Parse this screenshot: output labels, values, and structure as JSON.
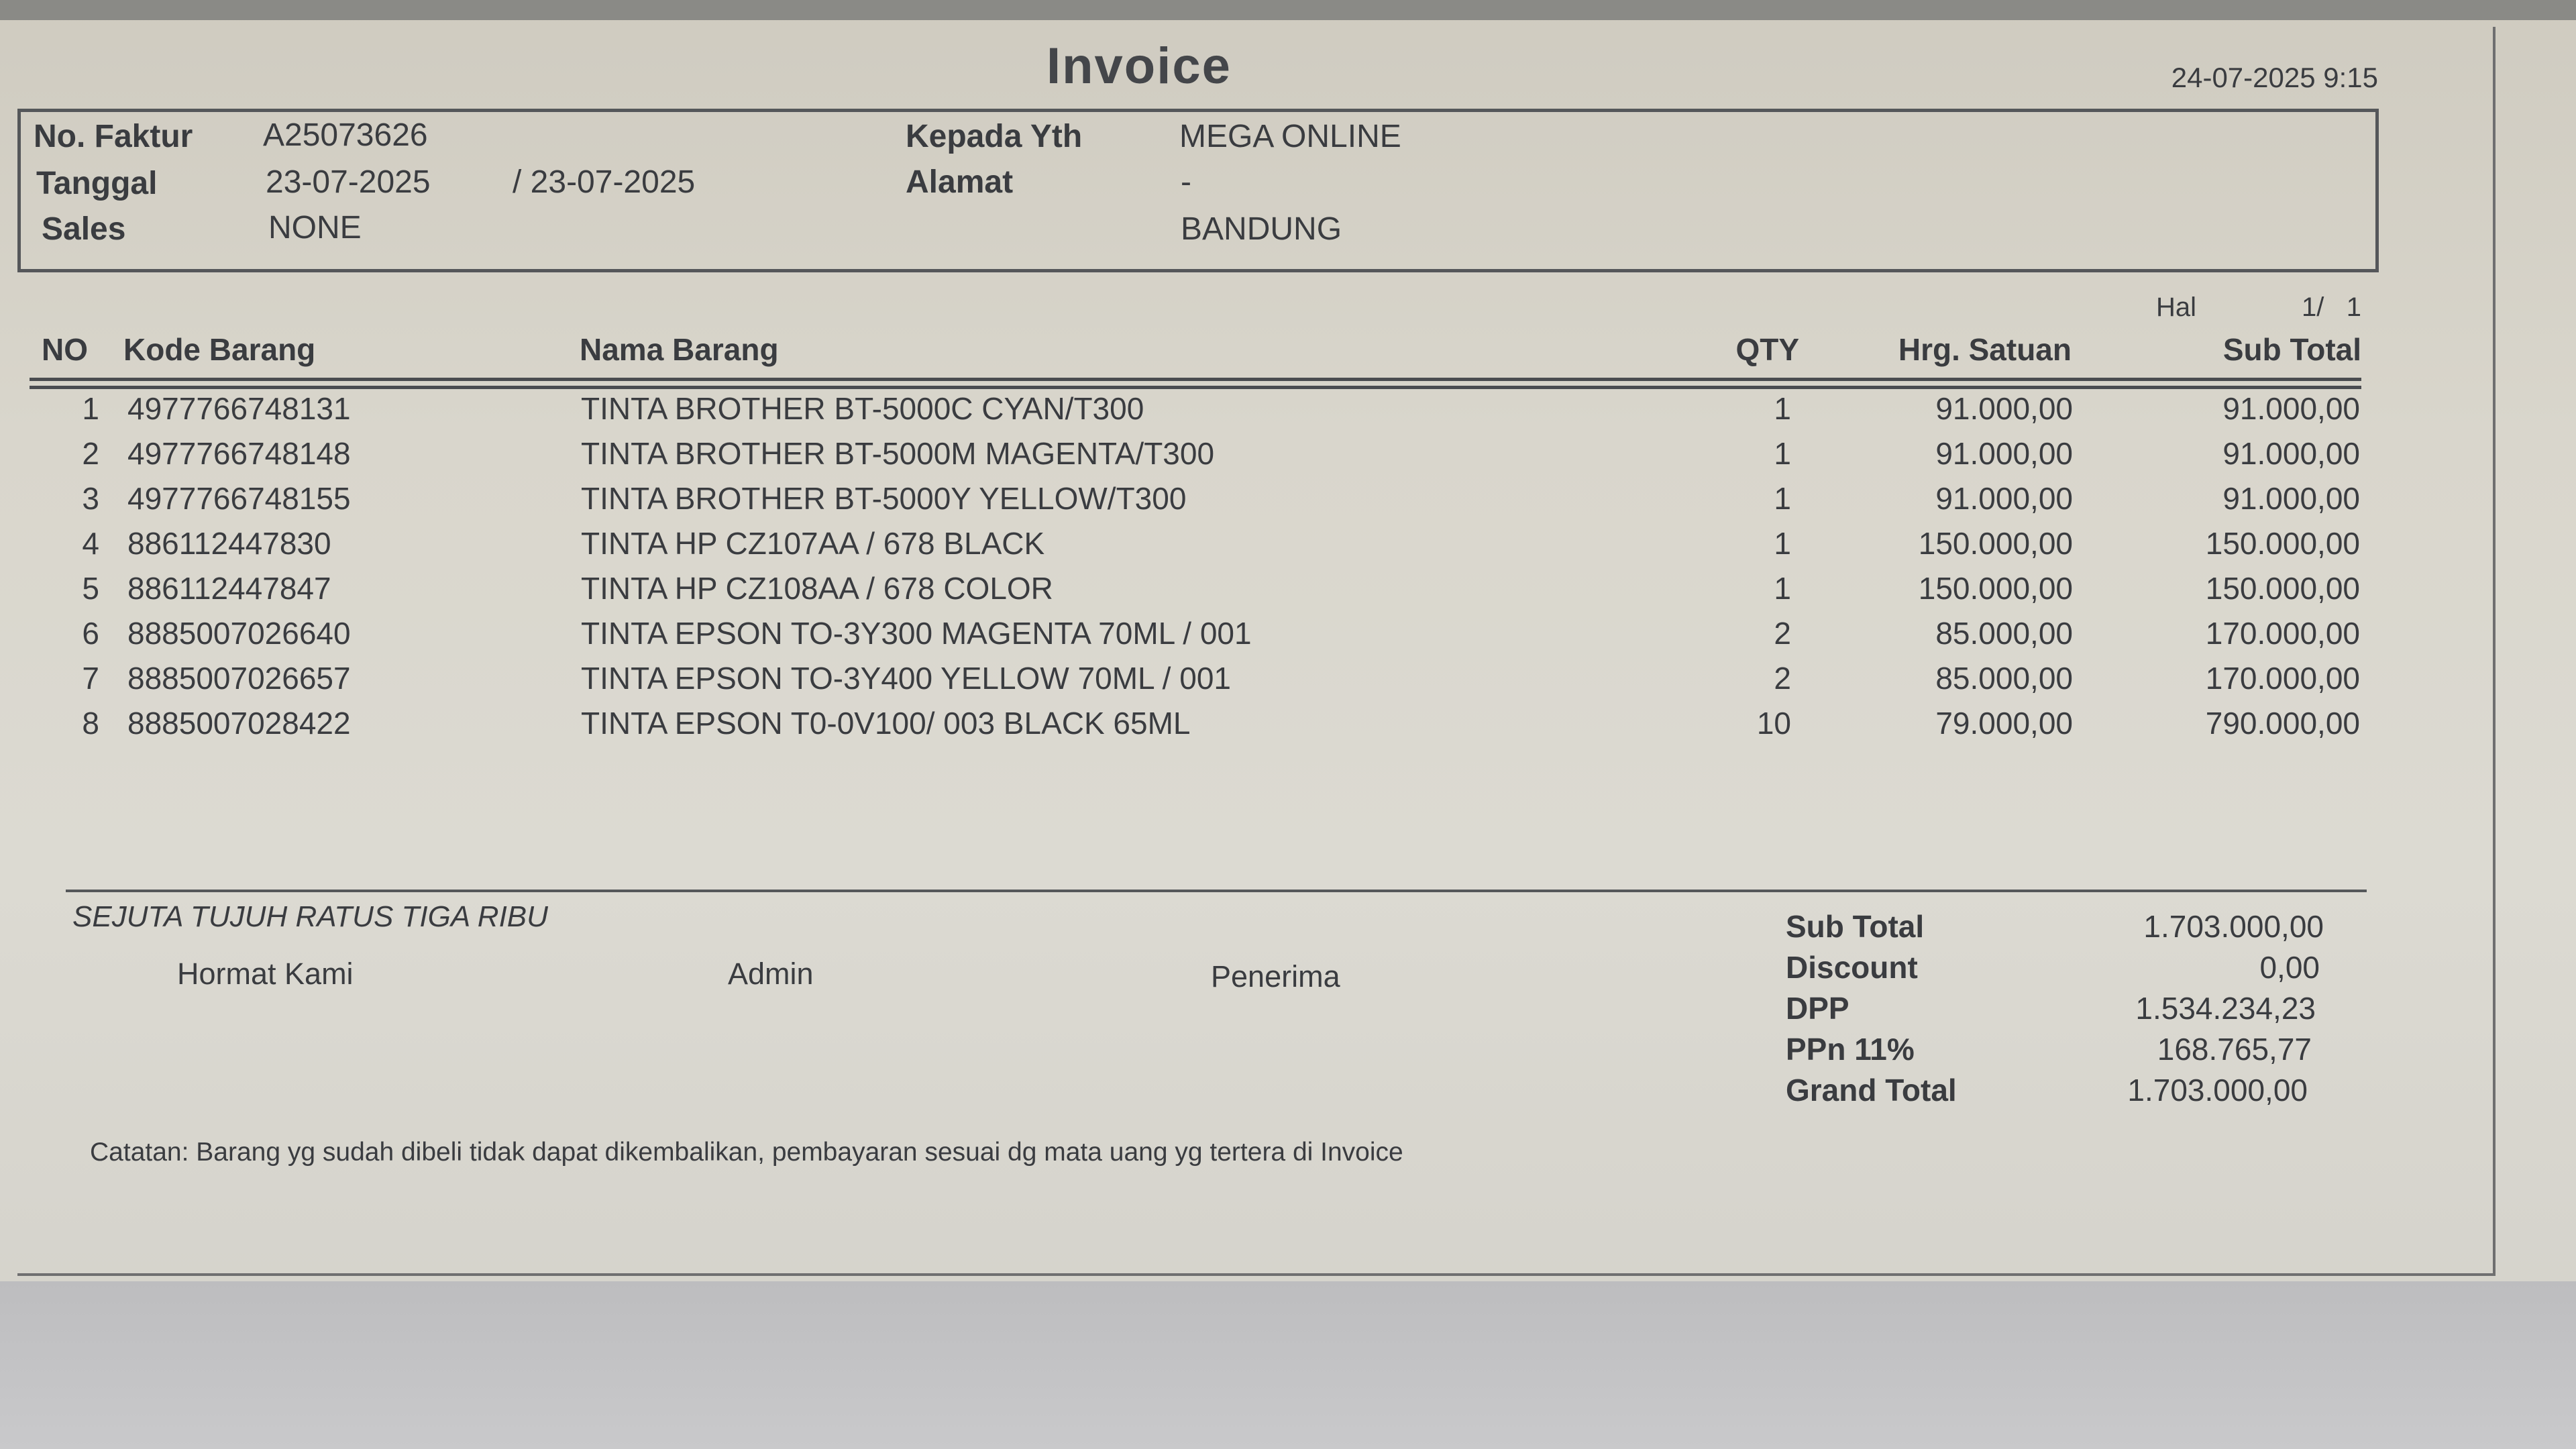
{
  "title": "Invoice",
  "print_datetime": "24-07-2025 9:15",
  "header": {
    "no_faktur_label": "No. Faktur",
    "no_faktur": "A25073626",
    "tanggal_label": "Tanggal",
    "tanggal": "23-07-2025",
    "tanggal_jatuh_tempo": "/ 23-07-2025",
    "sales_label": "Sales",
    "sales": "NONE",
    "kepada_label": "Kepada Yth",
    "kepada": "MEGA ONLINE",
    "alamat_label": "Alamat",
    "alamat_line1": "-",
    "alamat_line2": "BANDUNG"
  },
  "page": {
    "label": "Hal",
    "value": "1/   1"
  },
  "columns": {
    "no": "NO",
    "kode": "Kode Barang",
    "nama": "Nama Barang",
    "qty": "QTY",
    "harga": "Hrg. Satuan",
    "subtotal": "Sub Total"
  },
  "items": [
    {
      "no": "1",
      "kode": "4977766748131",
      "nama": "TINTA BROTHER BT-5000C CYAN/T300",
      "qty": "1",
      "harga": "91.000,00",
      "subtotal": "91.000,00"
    },
    {
      "no": "2",
      "kode": "4977766748148",
      "nama": "TINTA BROTHER BT-5000M MAGENTA/T300",
      "qty": "1",
      "harga": "91.000,00",
      "subtotal": "91.000,00"
    },
    {
      "no": "3",
      "kode": "4977766748155",
      "nama": "TINTA BROTHER BT-5000Y YELLOW/T300",
      "qty": "1",
      "harga": "91.000,00",
      "subtotal": "91.000,00"
    },
    {
      "no": "4",
      "kode": "886112447830",
      "nama": "TINTA HP CZ107AA / 678 BLACK",
      "qty": "1",
      "harga": "150.000,00",
      "subtotal": "150.000,00"
    },
    {
      "no": "5",
      "kode": "886112447847",
      "nama": "TINTA HP CZ108AA / 678 COLOR",
      "qty": "1",
      "harga": "150.000,00",
      "subtotal": "150.000,00"
    },
    {
      "no": "6",
      "kode": "8885007026640",
      "nama": "TINTA EPSON TO-3Y300 MAGENTA 70ML / 001",
      "qty": "2",
      "harga": "85.000,00",
      "subtotal": "170.000,00"
    },
    {
      "no": "7",
      "kode": "8885007026657",
      "nama": "TINTA EPSON TO-3Y400 YELLOW 70ML / 001",
      "qty": "2",
      "harga": "85.000,00",
      "subtotal": "170.000,00"
    },
    {
      "no": "8",
      "kode": "8885007028422",
      "nama": "TINTA EPSON T0-0V100/ 003 BLACK 65ML",
      "qty": "10",
      "harga": "79.000,00",
      "subtotal": "790.000,00"
    }
  ],
  "terbilang": "SEJUTA TUJUH RATUS TIGA RIBU",
  "signatures": {
    "hormat_kami": "Hormat Kami",
    "admin": "Admin",
    "penerima": "Penerima"
  },
  "summary": [
    {
      "label": "Sub Total",
      "value": "1.703.000,00"
    },
    {
      "label": "Discount",
      "value": "0,00"
    },
    {
      "label": "DPP",
      "value": "1.534.234,23"
    },
    {
      "label": "PPn 11%",
      "value": "168.765,77"
    },
    {
      "label": "Grand Total",
      "value": "1.703.000,00"
    }
  ],
  "note": "Catatan: Barang yg sudah dibeli tidak dapat dikembalikan, pembayaran sesuai dg mata uang yg tertera di Invoice"
}
